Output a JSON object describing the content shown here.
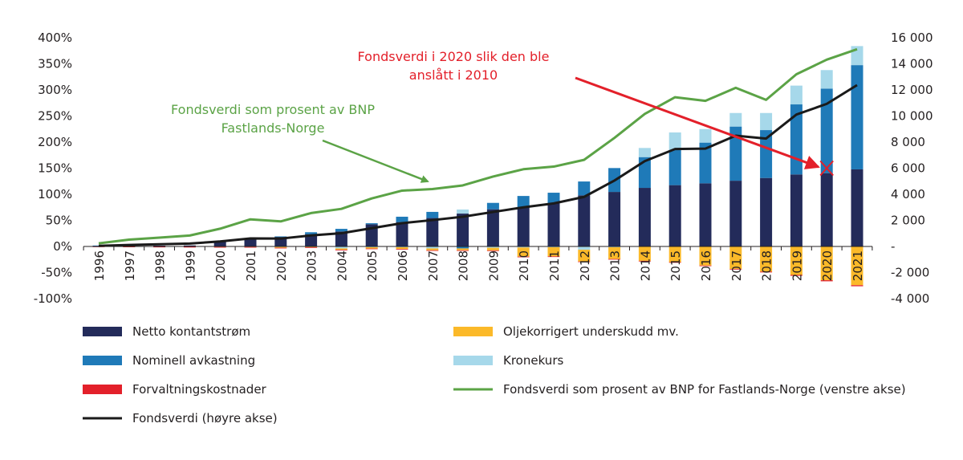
{
  "chart_data": {
    "type": "bar",
    "title": "",
    "categories": [
      "1996",
      "1997",
      "1998",
      "1999",
      "2000",
      "2001",
      "2002",
      "2003",
      "2004",
      "2005",
      "2006",
      "2007",
      "2008",
      "2009",
      "2010",
      "2011",
      "2012",
      "2013",
      "2014",
      "2015",
      "2016",
      "2017",
      "2018",
      "2019",
      "2020",
      "2021"
    ],
    "left_axis": {
      "label": "",
      "ylim": [
        -100,
        400
      ],
      "ticks": [
        "-100%",
        "-50%",
        "0%",
        "50%",
        "100%",
        "150%",
        "200%",
        "250%",
        "300%",
        "350%",
        "400%"
      ]
    },
    "right_axis": {
      "label": "",
      "ylim": [
        -4000,
        16000
      ],
      "ticks": [
        "-4 000",
        "-2 000",
        "-",
        "2 000",
        "4 000",
        "6 000",
        "8 000",
        "10 000",
        "12 000",
        "14 000",
        "16 000"
      ]
    },
    "bar_series": [
      {
        "name": "Netto kontantstrøm",
        "color": "#232b5a",
        "axis": "right",
        "values": [
          50,
          40,
          60,
          80,
          400,
          600,
          740,
          940,
          1150,
          1700,
          1870,
          2180,
          2520,
          2850,
          2990,
          3300,
          3920,
          4180,
          4490,
          4700,
          4840,
          5040,
          5250,
          5520,
          5620,
          5910
        ]
      },
      {
        "name": "Nominell avkastning",
        "color": "#1f7ab8",
        "axis": "right",
        "values": [
          20,
          0,
          0,
          0,
          0,
          0,
          30,
          150,
          200,
          80,
          410,
          470,
          -150,
          490,
          880,
          820,
          1060,
          1830,
          2360,
          2700,
          3120,
          4150,
          3670,
          5370,
          6480,
          7990
        ]
      },
      {
        "name": "Kronekurs",
        "color": "#a6d8ea",
        "axis": "right",
        "values": [
          0,
          0,
          0,
          0,
          0,
          0,
          -40,
          0,
          -150,
          -60,
          -60,
          -150,
          310,
          -100,
          -80,
          -60,
          -250,
          -60,
          700,
          1340,
          1040,
          1040,
          1310,
          1440,
          1420,
          1460
        ]
      },
      {
        "name": "Oljekorrigert underskudd mv.",
        "color": "#fbb929",
        "axis": "right",
        "values": [
          0,
          -10,
          -20,
          -30,
          -40,
          -40,
          -60,
          -60,
          -100,
          -100,
          -130,
          -140,
          -140,
          -200,
          -700,
          -700,
          -900,
          -900,
          -1100,
          -1200,
          -1460,
          -1720,
          -1930,
          -2180,
          -2590,
          -2970
        ]
      },
      {
        "name": "Forvaltningskostnader",
        "color": "#e3202a",
        "axis": "right",
        "values": [
          -5,
          -20,
          -20,
          -20,
          -10,
          -10,
          -10,
          -20,
          -10,
          -10,
          -10,
          -10,
          -20,
          -20,
          -20,
          -20,
          -20,
          -30,
          -30,
          -40,
          -50,
          -50,
          -60,
          -70,
          -80,
          -80
        ]
      }
    ],
    "line_series": [
      {
        "name": "Fondsverdi som prosent av BNP for Fastlands-Norge (venstre akse)",
        "color": "#5ba346",
        "axis": "left",
        "values": [
          6,
          13,
          17,
          21,
          34,
          52,
          48,
          64,
          72,
          92,
          107,
          110,
          117,
          134,
          148,
          153,
          166,
          208,
          254,
          286,
          279,
          304,
          281,
          330,
          358,
          378
        ]
      },
      {
        "name": "Fondsverdi (høyre akse)",
        "color": "#1a1a1a",
        "axis": "right",
        "values": [
          48,
          113,
          172,
          222,
          386,
          613,
          604,
          847,
          1016,
          1399,
          1784,
          2019,
          2275,
          2642,
          3000,
          3300,
          3800,
          5050,
          6540,
          7470,
          7500,
          8490,
          8270,
          10110,
          10930,
          12370
        ]
      }
    ],
    "annotations": {
      "green_text_1": "Fondsverdi som prosent av BNP",
      "green_text_2": "Fastlands-Norge",
      "red_text_1": "Fondsverdi i 2020 slik den ble",
      "red_text_2": "anslått i 2010",
      "red_marker": {
        "year": "2020",
        "value": 6000
      }
    },
    "legend": {
      "placement": "bottom",
      "items": [
        {
          "label": "Netto kontantstrøm",
          "kind": "bar",
          "color": "#232b5a"
        },
        {
          "label": "Oljekorrigert underskudd mv.",
          "kind": "bar",
          "color": "#fbb929"
        },
        {
          "label": "Nominell avkastning",
          "kind": "bar",
          "color": "#1f7ab8"
        },
        {
          "label": "Kronekurs",
          "kind": "bar",
          "color": "#a6d8ea"
        },
        {
          "label": "Forvaltningskostnader",
          "kind": "bar",
          "color": "#e3202a"
        },
        {
          "label": "Fondsverdi som prosent av BNP for Fastlands-Norge (venstre akse)",
          "kind": "line",
          "color": "#5ba346"
        },
        {
          "label": "Fondsverdi (høyre akse)",
          "kind": "line",
          "color": "#1a1a1a"
        }
      ]
    }
  }
}
